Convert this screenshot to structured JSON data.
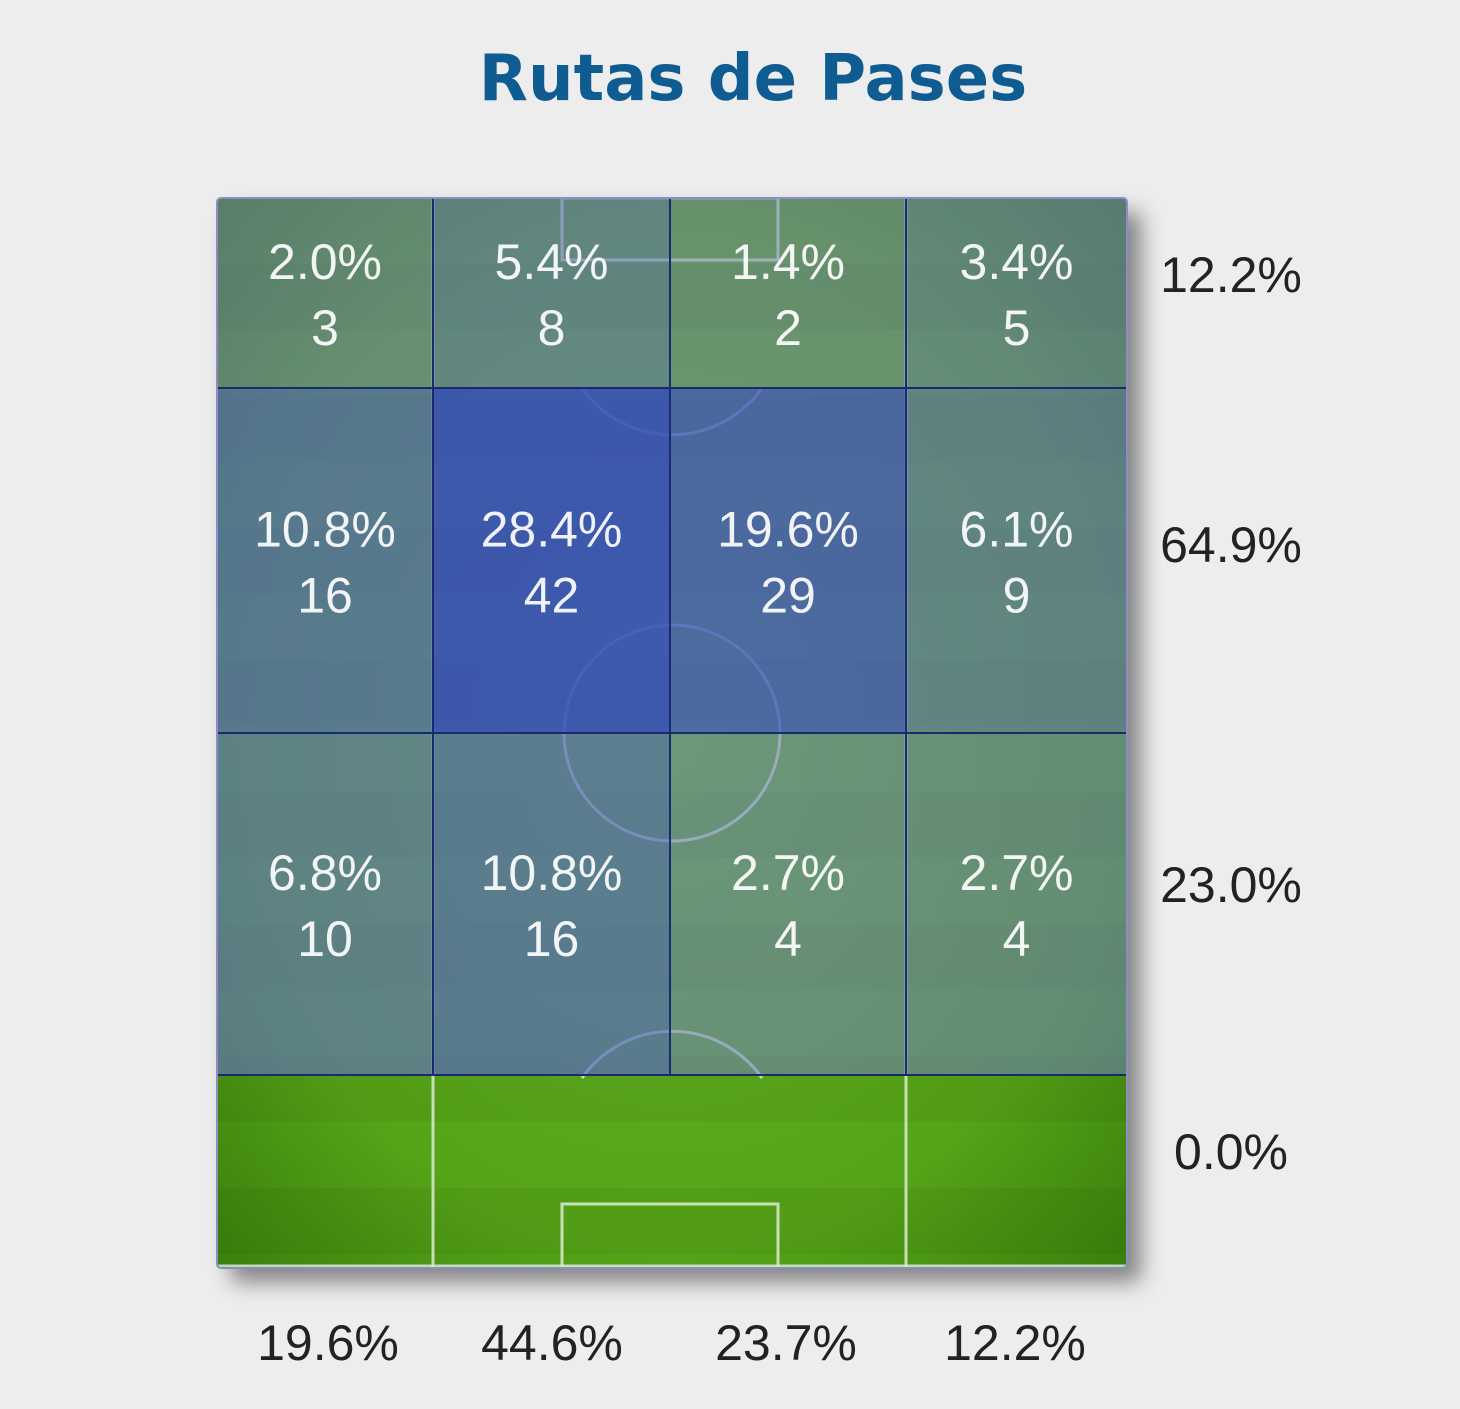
{
  "title": "Rutas de Pases",
  "colors": {
    "title": "#0f5c93",
    "high": "#3a50bb",
    "low_tint": "#8a8ec4",
    "grass_light": "#5fae20",
    "grass_dark": "#3f8c0e"
  },
  "chart_data": {
    "type": "heatmap",
    "title": "Rutas de Pases",
    "columns": 4,
    "rows": 4,
    "cells": [
      [
        {
          "pct": "2.0%",
          "count": "3",
          "value": 2.0
        },
        {
          "pct": "5.4%",
          "count": "8",
          "value": 5.4
        },
        {
          "pct": "1.4%",
          "count": "2",
          "value": 1.4
        },
        {
          "pct": "3.4%",
          "count": "5",
          "value": 3.4
        }
      ],
      [
        {
          "pct": "10.8%",
          "count": "16",
          "value": 10.8
        },
        {
          "pct": "28.4%",
          "count": "42",
          "value": 28.4
        },
        {
          "pct": "19.6%",
          "count": "29",
          "value": 19.6
        },
        {
          "pct": "6.1%",
          "count": "9",
          "value": 6.1
        }
      ],
      [
        {
          "pct": "6.8%",
          "count": "10",
          "value": 6.8
        },
        {
          "pct": "10.8%",
          "count": "16",
          "value": 10.8
        },
        {
          "pct": "2.7%",
          "count": "4",
          "value": 2.7
        },
        {
          "pct": "2.7%",
          "count": "4",
          "value": 2.7
        }
      ],
      [
        null,
        null,
        null,
        null
      ]
    ],
    "row_totals": [
      "12.2%",
      "64.9%",
      "23.0%",
      "0.0%"
    ],
    "column_totals": [
      "19.6%",
      "44.6%",
      "23.7%",
      "12.2%"
    ]
  }
}
